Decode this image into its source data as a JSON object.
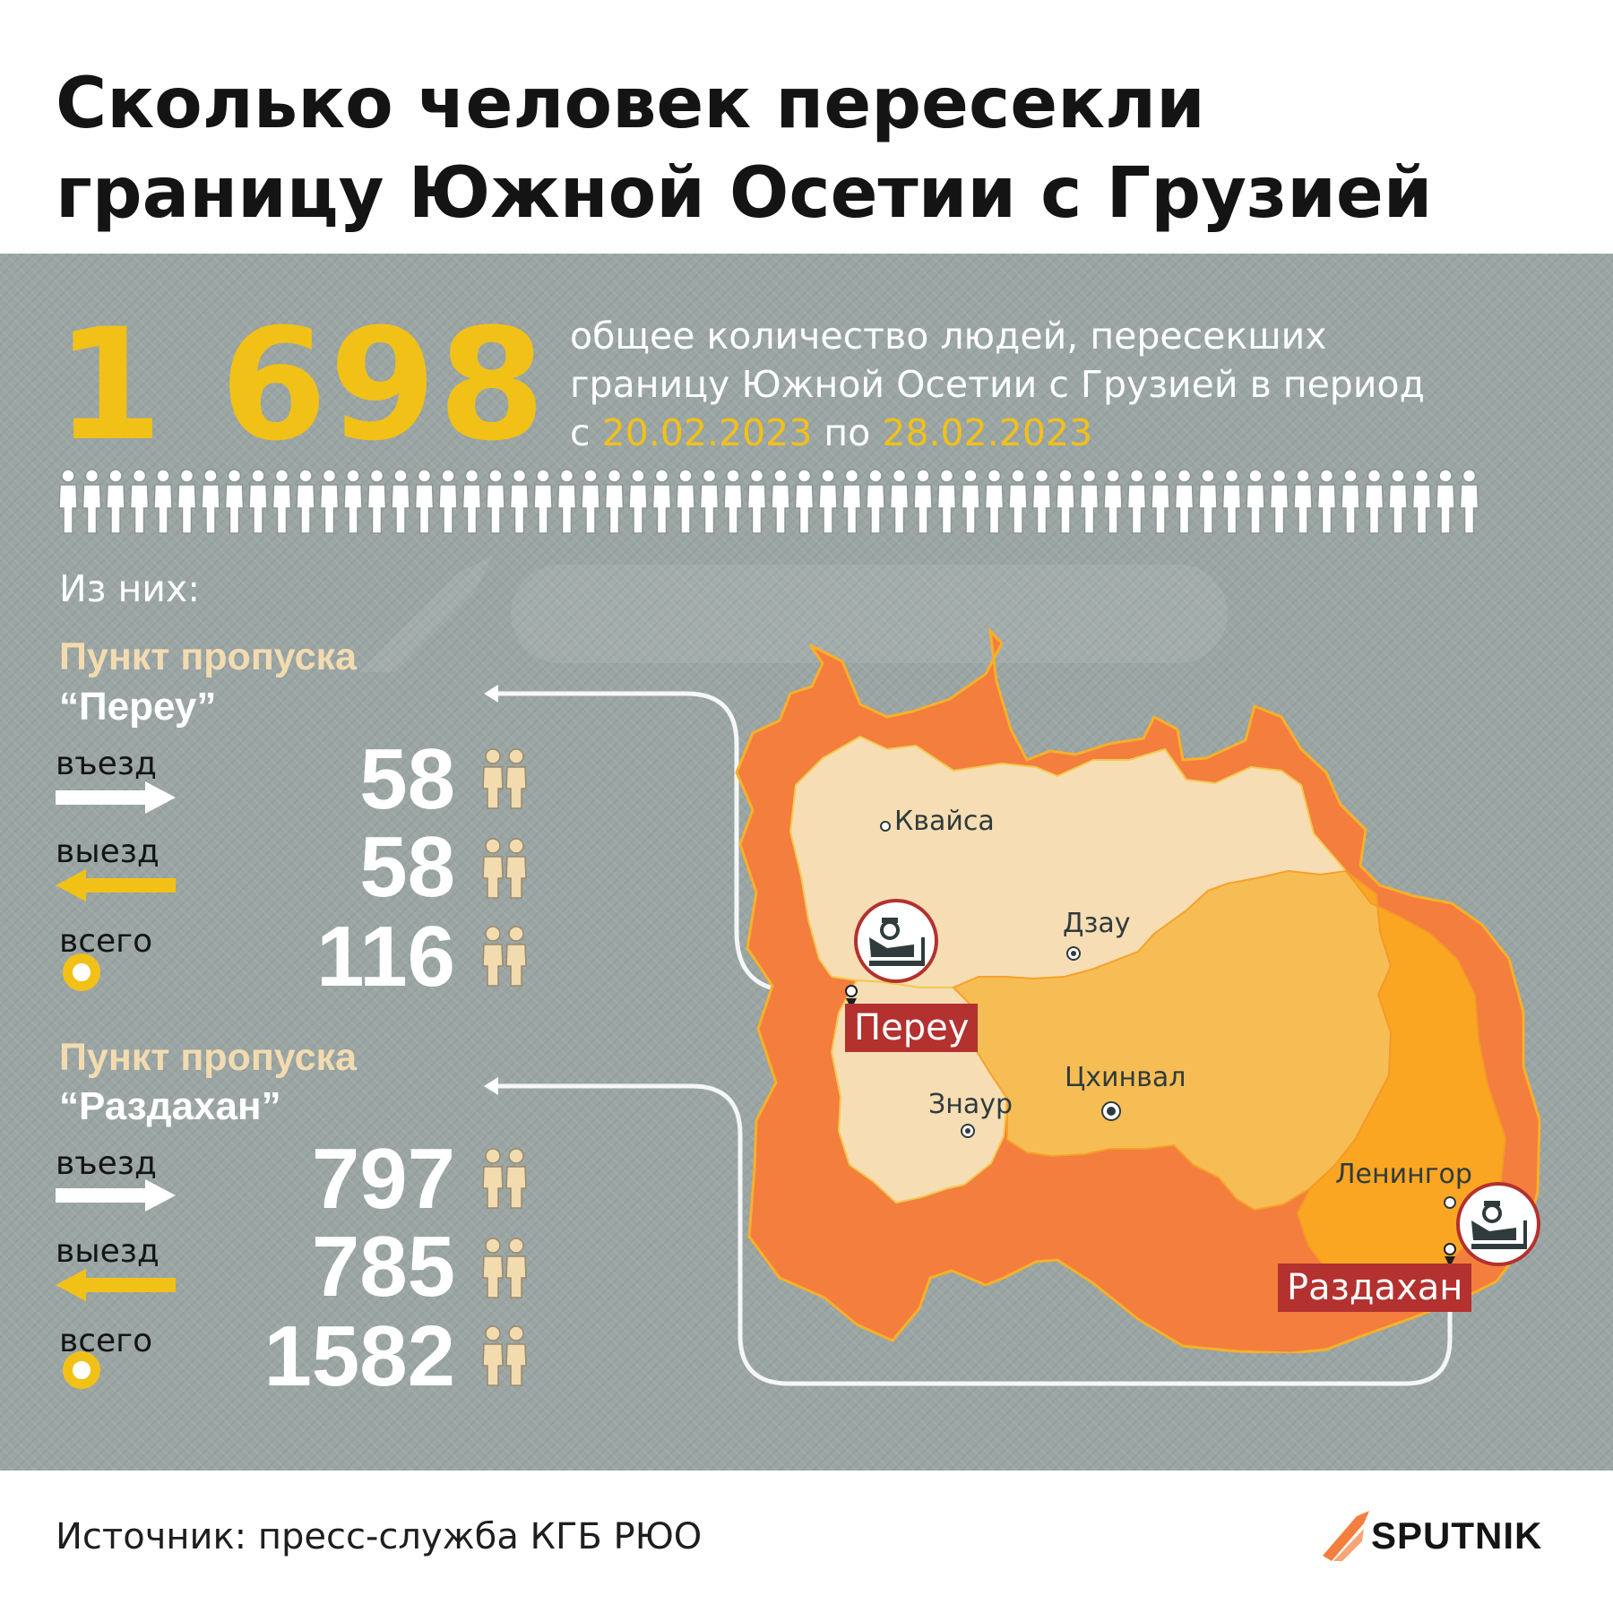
{
  "title": {
    "line1": "Сколько человек пересекли",
    "line2": "границу Южной Осетии с Грузией"
  },
  "total": {
    "number": "1 698",
    "desc_line1": "общее количество людей, пересекших",
    "desc_line2": "границу Южной Осетии с Грузией в период",
    "desc_from_prefix": "с",
    "date_from": "20.02.2023",
    "desc_to_prefix": "по",
    "date_to": "28.02.2023"
  },
  "of_them_label": "Из них:",
  "checkpoints": [
    {
      "title": "Пункт пропуска",
      "name": "“Переу”",
      "rows": [
        {
          "label": "въезд",
          "value": "58"
        },
        {
          "label": "выезд",
          "value": "58"
        },
        {
          "label": "всего",
          "value": "116"
        }
      ],
      "map_tag": "Переу"
    },
    {
      "title": "Пункт пропуска",
      "name": "“Раздахан”",
      "rows": [
        {
          "label": "въезд",
          "value": "797"
        },
        {
          "label": "выезд",
          "value": "785"
        },
        {
          "label": "всего",
          "value": "1582"
        }
      ],
      "map_tag": "Раздахан"
    }
  ],
  "map": {
    "cities": [
      "Квайса",
      "Дзау",
      "Знаур",
      "Цхинвал",
      "Ленингор"
    ]
  },
  "colors": {
    "background": "#9aa5a4",
    "accent_yellow": "#f2c118",
    "checkpoint_tag": "#b3312f",
    "region_light": "#f6ddb4",
    "region_mid": "#f7bd55",
    "region_dark": "#faa623",
    "border_orange": "#f37e3d"
  },
  "icons": [
    "person-icon",
    "people-pair-icon",
    "arrow-right-icon",
    "arrow-left-icon",
    "ring-icon",
    "border-guard-icon",
    "sputnik-logo-icon"
  ],
  "footer": {
    "source": "Источник: пресс-служба КГБ РЮО",
    "logo_text": "SPUTNIK"
  }
}
